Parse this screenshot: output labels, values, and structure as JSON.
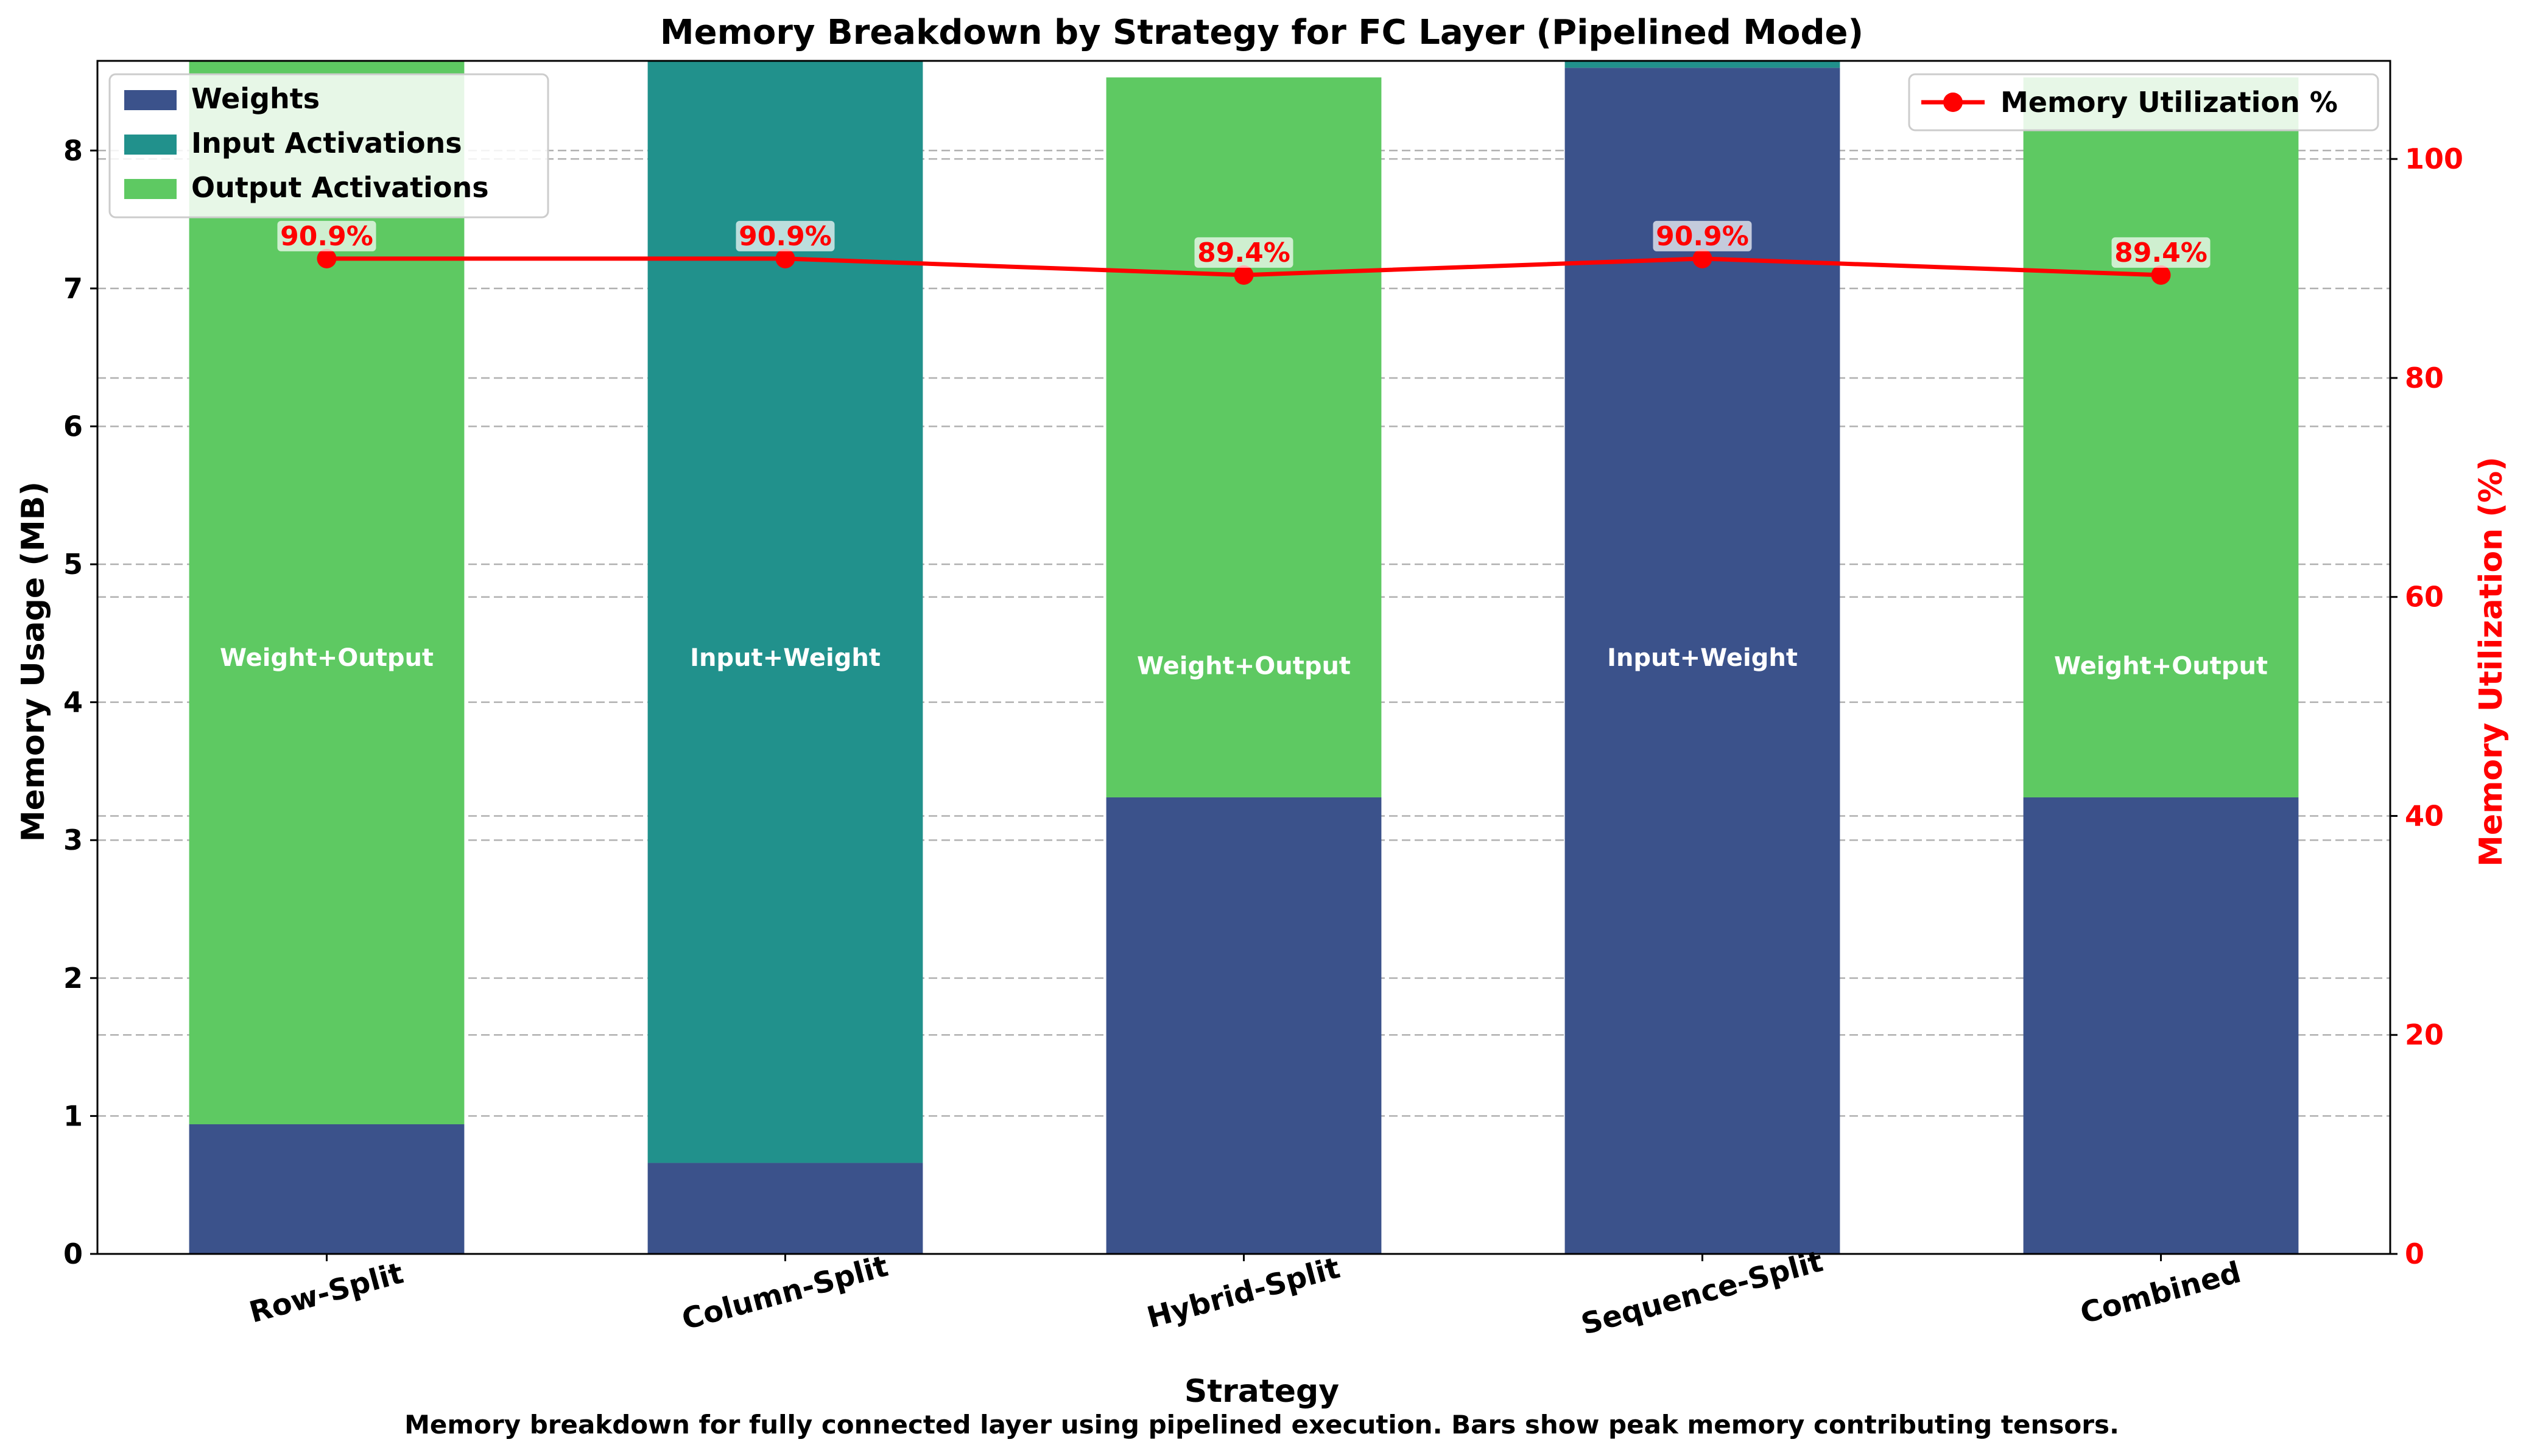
{
  "chart_data": {
    "type": "bar",
    "stacked": true,
    "title": "Memory Breakdown by Strategy for FC Layer (Pipelined Mode)",
    "xlabel": "Strategy",
    "ylabel": "Memory Usage (MB)",
    "ylabel_right": "Memory Utilization (%)",
    "caption": "Memory breakdown for fully connected layer using pipelined execution. Bars show peak memory contributing tensors.",
    "categories": [
      "Row-Split",
      "Column-Split",
      "Hybrid-Split",
      "Sequence-Split",
      "Combined"
    ],
    "ylim": [
      0,
      8.65
    ],
    "ylim_right": [
      0,
      108.96
    ],
    "yticks": [
      0,
      1,
      2,
      3,
      4,
      5,
      6,
      7,
      8
    ],
    "yticks_right": [
      0,
      20,
      40,
      60,
      80,
      100
    ],
    "series": [
      {
        "name": "Weights",
        "color": "#3b528b",
        "values": [
          0.94,
          0.66,
          3.31,
          8.6,
          3.31
        ]
      },
      {
        "name": "Input Activations",
        "color": "#21918c",
        "values": [
          0,
          8.0,
          0,
          0.06,
          0
        ]
      },
      {
        "name": "Output Activations",
        "color": "#5ec962",
        "values": [
          7.71,
          0,
          5.22,
          0,
          5.22
        ]
      }
    ],
    "bar_labels": [
      "Weight+Output",
      "Input+Weight",
      "Weight+Output",
      "Input+Weight",
      "Weight+Output"
    ],
    "line_series": {
      "name": "Memory Utilization %",
      "color": "#ff0000",
      "values": [
        90.9,
        90.9,
        89.4,
        90.9,
        89.4
      ],
      "labels": [
        "90.9%",
        "90.9%",
        "89.4%",
        "90.9%",
        "89.4%"
      ]
    },
    "grid": "y-dashed",
    "legend_bars": "top-left",
    "legend_line": "top-right"
  }
}
